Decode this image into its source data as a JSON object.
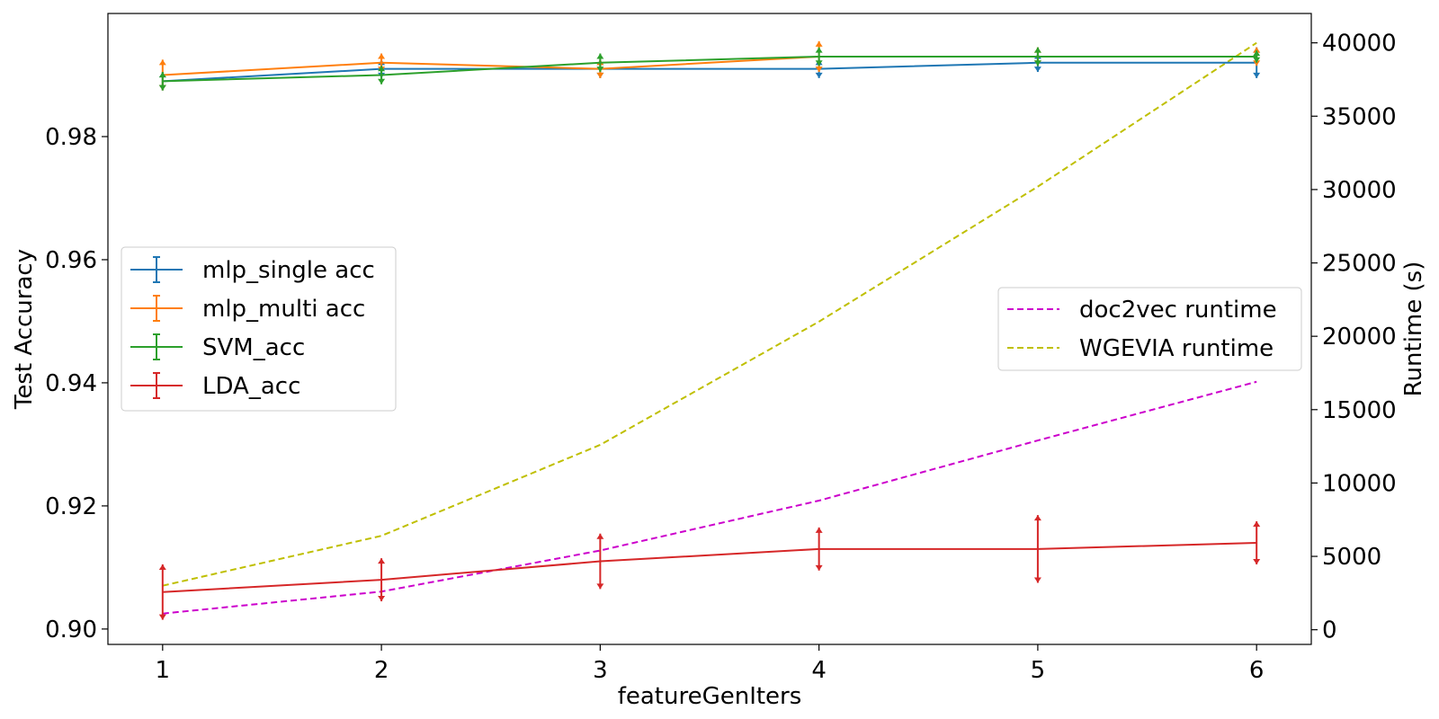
{
  "chart_data": {
    "type": "line",
    "xlabel": "featureGenIters",
    "ylabel_left": "Test Accuracy",
    "ylabel_right": "Runtime (s)",
    "x": [
      1,
      2,
      3,
      4,
      5,
      6
    ],
    "xlim": [
      0.75,
      6.25
    ],
    "ylim_left": [
      0.8975,
      1.0
    ],
    "ylim_right": [
      -1000,
      42000
    ],
    "yticks_left": [
      "0.90",
      "0.92",
      "0.94",
      "0.96",
      "0.98"
    ],
    "yticks_left_values": [
      0.9,
      0.92,
      0.94,
      0.96,
      0.98
    ],
    "yticks_right": [
      "0",
      "5000",
      "10000",
      "15000",
      "20000",
      "25000",
      "30000",
      "35000",
      "40000"
    ],
    "yticks_right_values": [
      0,
      5000,
      10000,
      15000,
      20000,
      25000,
      30000,
      35000,
      40000
    ],
    "xticks": [
      "1",
      "2",
      "3",
      "4",
      "5",
      "6"
    ],
    "grid": false,
    "series_left": [
      {
        "name": "mlp_single acc",
        "color": "#1f77b4",
        "values": [
          0.989,
          0.991,
          0.991,
          0.991,
          0.992,
          0.992
        ],
        "err": [
          0.0015,
          0.0015,
          0.0015,
          0.0015,
          0.0015,
          0.0025
        ]
      },
      {
        "name": "mlp_multi acc",
        "color": "#ff7f0e",
        "values": [
          0.99,
          0.992,
          0.991,
          0.993,
          0.993,
          0.993
        ],
        "err": [
          0.0025,
          0.0015,
          0.0015,
          0.0025,
          0.0015,
          0.0015
        ]
      },
      {
        "name": "SVM_acc",
        "color": "#2ca02c",
        "values": [
          0.989,
          0.99,
          0.992,
          0.993,
          0.993,
          0.993
        ],
        "err": [
          0.0015,
          0.0015,
          0.0015,
          0.0015,
          0.0015,
          0.001
        ]
      },
      {
        "name": "LDA_acc",
        "color": "#d62728",
        "values": [
          0.906,
          0.908,
          0.911,
          0.913,
          0.913,
          0.914
        ],
        "err": [
          0.0045,
          0.0035,
          0.0045,
          0.0035,
          0.0055,
          0.0035
        ]
      }
    ],
    "series_right": [
      {
        "name": "doc2vec runtime",
        "color": "#cc00cc",
        "values": [
          1100,
          2600,
          5400,
          8800,
          12900,
          16900
        ]
      },
      {
        "name": "WGEVIA runtime",
        "color": "#bfbf00",
        "values": [
          3000,
          6400,
          12600,
          21000,
          30200,
          40000
        ]
      }
    ],
    "legend_left_placement": "center-left",
    "legend_right_placement": "center-right"
  }
}
